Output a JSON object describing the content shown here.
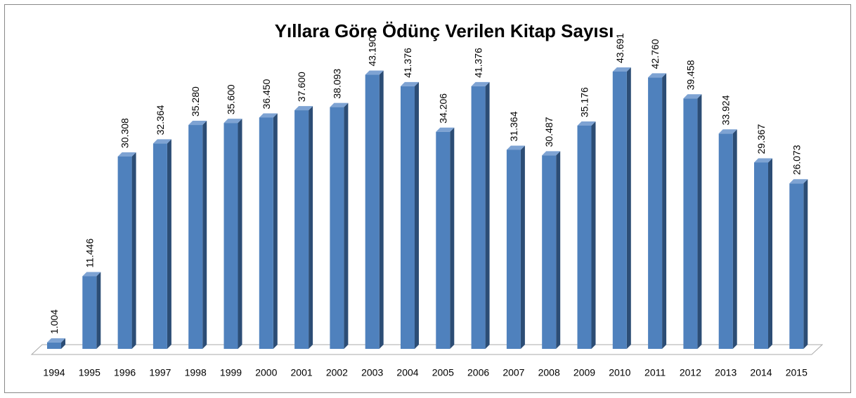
{
  "chart_data": {
    "type": "bar",
    "title": "Yıllara Göre Ödünç Verilen Kitap Sayısı",
    "categories": [
      "1994",
      "1995",
      "1996",
      "1997",
      "1998",
      "1999",
      "2000",
      "2001",
      "2002",
      "2003",
      "2004",
      "2005",
      "2006",
      "2007",
      "2008",
      "2009",
      "2010",
      "2011",
      "2012",
      "2013",
      "2014",
      "2015"
    ],
    "values": [
      1004,
      11446,
      30308,
      32364,
      35280,
      35600,
      36450,
      37600,
      38093,
      43190,
      41376,
      34206,
      41376,
      31364,
      30487,
      35176,
      43691,
      42760,
      39458,
      33924,
      29367,
      26073
    ],
    "value_labels": [
      "1.004",
      "11.446",
      "30.308",
      "32.364",
      "35.280",
      "35.600",
      "36.450",
      "37.600",
      "38.093",
      "43.190",
      "41.376",
      "34.206",
      "41.376",
      "31.364",
      "30.487",
      "35.176",
      "43.691",
      "42.760",
      "39.458",
      "33.924",
      "29.367",
      "26.073"
    ],
    "color": "#4f81bd"
  }
}
